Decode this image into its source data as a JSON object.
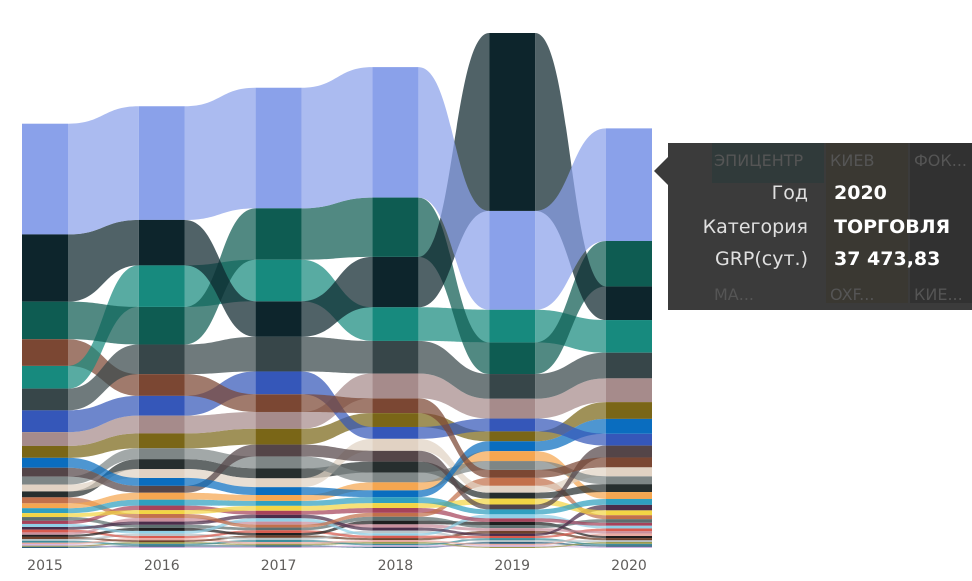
{
  "chart_data": {
    "type": "ribbon",
    "title": "",
    "xlabel": "",
    "ylabel": "",
    "categories": [
      "2015",
      "2016",
      "2017",
      "2018",
      "2019",
      "2020"
    ],
    "grid": false,
    "legend": "none",
    "series": [
      {
        "name": "ТОРГОВЛЯ",
        "color": "#8aa1ea",
        "values": [
          36850,
          37840,
          40140,
          43430,
          32900,
          37473.83
        ]
      },
      {
        "color": "#0d252c",
        "values": [
          22370,
          15130,
          11840,
          16780,
          59220,
          11190
        ]
      },
      {
        "color": "#0e5c52",
        "values": [
          12500,
          12500,
          17110,
          19740,
          10530,
          15130
        ]
      },
      {
        "color": "#178a7e",
        "values": [
          7570,
          13820,
          13820,
          11190,
          10860,
          10860
        ]
      },
      {
        "color": "#374649",
        "values": [
          7240,
          9870,
          11520,
          10860,
          8230,
          8550
        ]
      },
      {
        "color": "#7b4733",
        "values": [
          8880,
          7240,
          5920,
          4940,
          2630,
          3290
        ]
      },
      {
        "color": "#3557b9",
        "values": [
          7240,
          6580,
          7570,
          3950,
          4280,
          3950
        ]
      },
      {
        "color": "#a68b8b",
        "values": [
          4610,
          5920,
          5590,
          8230,
          6580,
          7900
        ]
      },
      {
        "color": "#7a6617",
        "values": [
          3950,
          4940,
          5260,
          4610,
          3290,
          5590
        ]
      },
      {
        "color": "#0a6dbf",
        "values": [
          3290,
          2630,
          2630,
          2300,
          3290,
          4940
        ]
      },
      {
        "color": "#544548",
        "values": [
          2960,
          2300,
          3950,
          3620,
          1640,
          3950
        ]
      },
      {
        "color": "#7e8686",
        "values": [
          2630,
          3620,
          3950,
          3290,
          2960,
          2630
        ]
      },
      {
        "color": "#e1d2c3",
        "values": [
          2300,
          2960,
          2960,
          3950,
          2300,
          2960
        ]
      },
      {
        "color": "#262e2e",
        "values": [
          1970,
          3290,
          3290,
          3620,
          1970,
          2630
        ]
      },
      {
        "color": "#f5a650",
        "values": [
          1640,
          2300,
          1970,
          2630,
          3290,
          2300
        ]
      },
      {
        "color": "#2f9fbf",
        "values": [
          1640,
          1970,
          1640,
          1970,
          1640,
          1970
        ]
      },
      {
        "color": "#f2d545",
        "values": [
          1310,
          1310,
          1640,
          1640,
          1970,
          1640
        ]
      },
      {
        "color": "#c2704b",
        "values": [
          1970,
          1310,
          990,
          1310,
          2630,
          1310
        ]
      },
      {
        "color": "#4a2d4a",
        "values": [
          900,
          1100,
          1200,
          1000,
          800,
          1800
        ]
      },
      {
        "color": "#a6425a",
        "values": [
          1100,
          1500,
          1300,
          1600,
          1200,
          1000
        ]
      },
      {
        "color": "#8fd0e6",
        "values": [
          1000,
          900,
          1100,
          800,
          1300,
          900
        ]
      },
      {
        "color": "#5c6e6e",
        "values": [
          1200,
          1000,
          900,
          1300,
          1000,
          1200
        ]
      },
      {
        "color": "#c98f9c",
        "values": [
          800,
          1200,
          1000,
          1100,
          900,
          800
        ]
      },
      {
        "color": "#1f1f1f",
        "values": [
          700,
          1000,
          800,
          1200,
          1100,
          700
        ]
      },
      {
        "color": "#d85a4e",
        "values": [
          900,
          700,
          900,
          800,
          700,
          900
        ]
      },
      {
        "color": "#b7c3c7",
        "values": [
          600,
          800,
          700,
          900,
          600,
          600
        ]
      },
      {
        "color": "#6e3f2a",
        "values": [
          700,
          600,
          800,
          700,
          900,
          700
        ]
      },
      {
        "color": "#e9a9a0",
        "values": [
          500,
          700,
          600,
          600,
          500,
          800
        ]
      },
      {
        "color": "#3d8d9b",
        "values": [
          600,
          500,
          700,
          500,
          700,
          500
        ]
      },
      {
        "color": "#9a9a4e",
        "values": [
          400,
          600,
          500,
          600,
          400,
          600
        ]
      },
      {
        "color": "#d0b0e0",
        "values": [
          500,
          400,
          400,
          500,
          500,
          400
        ]
      },
      {
        "color": "#2e5f7a",
        "values": [
          400,
          500,
          500,
          400,
          600,
          500
        ]
      }
    ]
  },
  "tooltip": {
    "rows": [
      {
        "label": "Год",
        "value": "2020"
      },
      {
        "label": "Категория",
        "value": "ТОРГОВЛЯ"
      },
      {
        "label": "GRP(сут.)",
        "value": "37 473,83"
      }
    ],
    "background_labels": [
      "ЭПИЦЕНТР",
      "КИЕВ",
      "ФОК...",
      "МА...",
      "OXF...",
      "КИЕ..."
    ]
  }
}
